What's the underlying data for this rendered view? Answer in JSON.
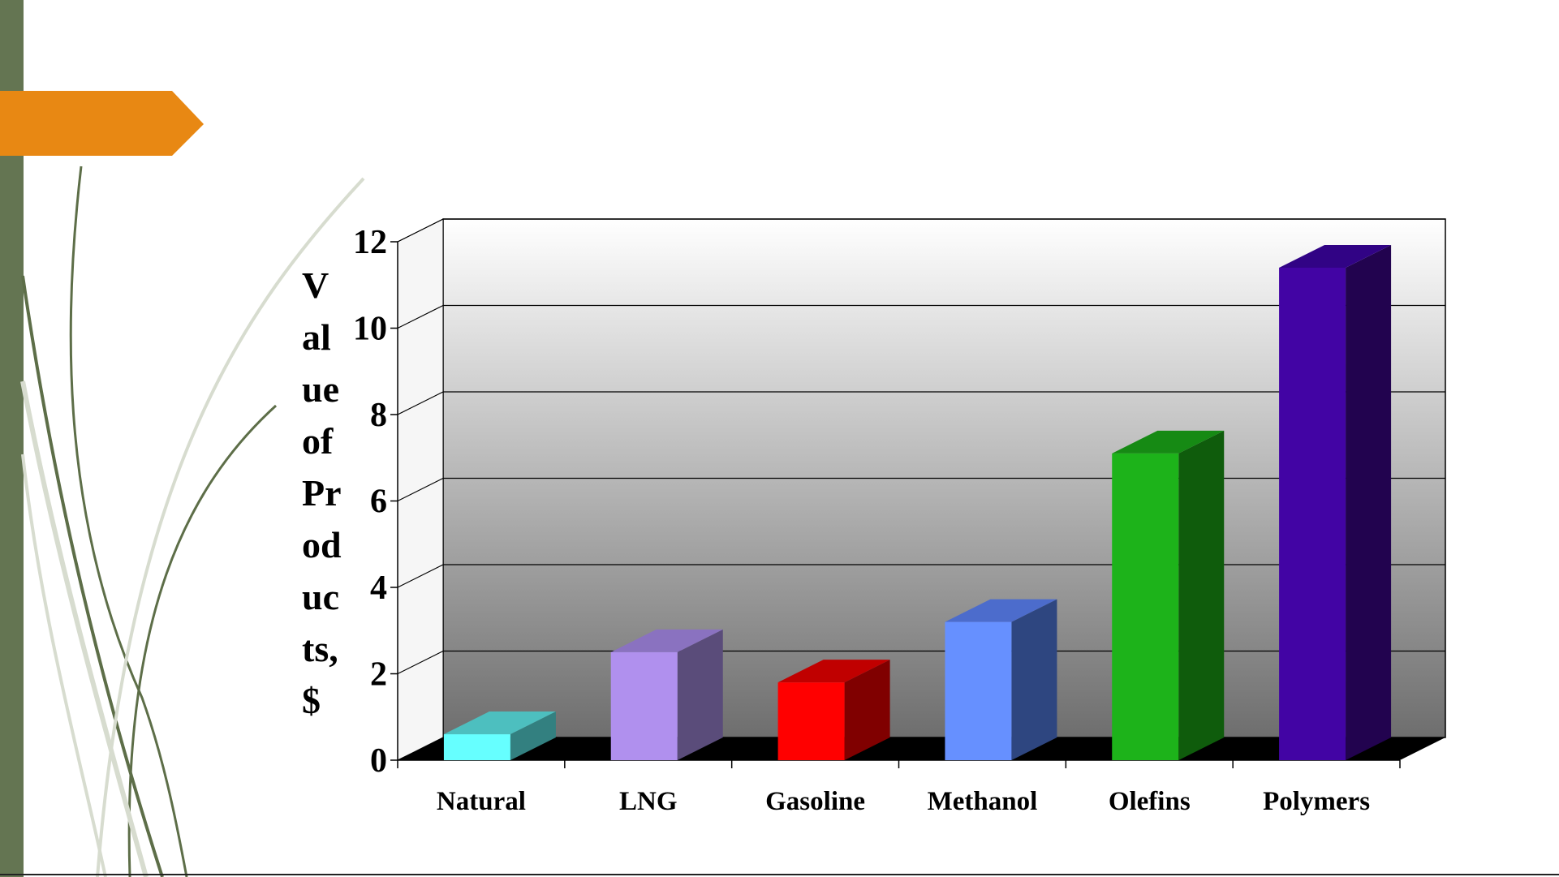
{
  "slide": {
    "accent_bar_color": "#647552",
    "tab_color": "#e88813",
    "vine_colors": [
      "#5d6e48",
      "#d7dccf"
    ]
  },
  "chart_data": {
    "type": "bar",
    "style": "3d",
    "categories": [
      "Natural",
      "LNG",
      "Gasoline",
      "Methanol",
      "Olefins",
      "Polymers"
    ],
    "values": [
      0.6,
      2.5,
      1.8,
      3.2,
      7.1,
      11.4
    ],
    "ylabel_lines": [
      "V",
      "al",
      "ue",
      "of",
      "Pr",
      "od",
      "uc",
      "ts,",
      "$"
    ],
    "ylim": [
      0,
      12
    ],
    "yticks": [
      0,
      2,
      4,
      6,
      8,
      10,
      12
    ],
    "grid": true,
    "legend": "none",
    "colors": {
      "front": [
        "#66ffff",
        "#b090ee",
        "#ff0000",
        "#6690ff",
        "#1db31a",
        "#4204a4"
      ],
      "side": [
        "#338080",
        "#5a4c7a",
        "#800000",
        "#2e4680",
        "#0f5c0c",
        "#22034f"
      ],
      "top": [
        "#4dbfbf",
        "#8a72c0",
        "#c00000",
        "#4c6ccc",
        "#168a14",
        "#310385"
      ]
    }
  }
}
